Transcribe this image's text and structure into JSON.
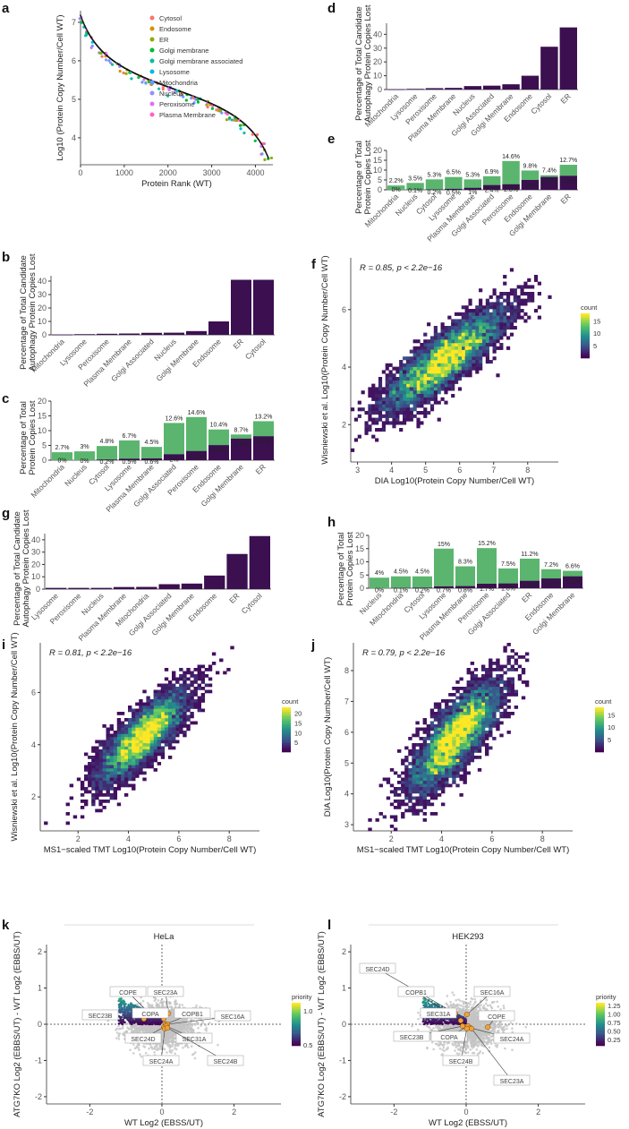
{
  "panel_labels": [
    "a",
    "b",
    "c",
    "d",
    "e",
    "f",
    "g",
    "h",
    "i",
    "j",
    "k",
    "l"
  ],
  "colors": {
    "dark": "#3b0f50",
    "green": "#5bb56e",
    "gray": "#c4c4c4",
    "orange": "#f2a23a"
  },
  "chart_data": [
    {
      "id": "a",
      "type": "scatter",
      "xlabel": "Protein Rank (WT)",
      "ylabel": "Log10 (Protein Copy Number/Cell WT)",
      "xlim": [
        0,
        4400
      ],
      "ylim": [
        3.3,
        7.3
      ],
      "xticks": [
        0,
        1000,
        2000,
        3000,
        4000
      ],
      "yticks": [
        4,
        5,
        6,
        7
      ],
      "legend": [
        {
          "name": "Cytosol",
          "color": "#F8766D"
        },
        {
          "name": "Endosome",
          "color": "#D39200"
        },
        {
          "name": "ER",
          "color": "#93AA00"
        },
        {
          "name": "Golgi membrane",
          "color": "#00BA38"
        },
        {
          "name": "Golgi membrane associated",
          "color": "#00C19F"
        },
        {
          "name": "Lysosome",
          "color": "#00B9E3"
        },
        {
          "name": "Mitochondria",
          "color": "#619CFF"
        },
        {
          "name": "Nucleus",
          "color": "#9590FF"
        },
        {
          "name": "Peroxisome",
          "color": "#DB72FB"
        },
        {
          "name": "Plasma Membrane",
          "color": "#FF61C3"
        }
      ],
      "legend_position": "top-right"
    },
    {
      "id": "b",
      "type": "bar",
      "ylabel": [
        "Percentage of Total Candidate",
        "Autophagy Protein Copies Lost"
      ],
      "ylim": [
        0,
        44
      ],
      "yticks": [
        0,
        10,
        20,
        30,
        40
      ],
      "categories": [
        "Mitochondria",
        "Lysosome",
        "Peroxisome",
        "Plasma Membrane",
        "Golgi Associated",
        "Nucleus",
        "Golgi Membrane",
        "Endosome",
        "ER",
        "Cytosol"
      ],
      "values": [
        0.2,
        0.5,
        0.8,
        1,
        1.5,
        1.6,
        2.8,
        10,
        41,
        41
      ]
    },
    {
      "id": "c",
      "type": "bar",
      "stacked": true,
      "ylabel": [
        "Percentage of Total",
        "Protein Copies Lost"
      ],
      "ylim": [
        0,
        20
      ],
      "yticks": [
        0,
        5,
        10,
        15,
        20
      ],
      "categories": [
        "Mitochondria",
        "Nucleus",
        "Cytosol",
        "Lysosome",
        "Plasma Membrane",
        "Golgi Associated",
        "Peroxisome",
        "Endosome",
        "Golgi Membrane",
        "ER"
      ],
      "series": [
        {
          "name": "autophagy",
          "values": [
            0,
            0,
            0.2,
            0.5,
            0.6,
            2,
            3.1,
            5.1,
            7.3,
            8.1
          ]
        },
        {
          "name": "total",
          "values": [
            2.7,
            3,
            4.8,
            6.7,
            4.5,
            12.6,
            14.6,
            10.4,
            8.7,
            13.2
          ]
        }
      ],
      "labels_inner": [
        "0%",
        "0%",
        "0.2%",
        "0.5%",
        "0.6%",
        "2%",
        "3.1%",
        "5.1%",
        "7.3%",
        "8.1%"
      ],
      "labels_total": [
        "2.7%",
        "3%",
        "4.8%",
        "6.7%",
        "4.5%",
        "12.6%",
        "14.6%",
        "10.4%",
        "8.7%",
        "13.2%"
      ]
    },
    {
      "id": "d",
      "type": "bar",
      "ylabel": [
        "Percentage of Total Candidate",
        "Autophagy Protein Copies Lost"
      ],
      "ylim": [
        0,
        48
      ],
      "yticks": [
        0,
        10,
        20,
        30,
        40
      ],
      "categories": [
        "Mitochondria",
        "Lysosome",
        "Peroxisome",
        "Plasma Membrane",
        "Nucleus",
        "Golgi Associated",
        "Golgi Membrane",
        "Endosome",
        "Cytosol",
        "ER"
      ],
      "values": [
        0.2,
        0.5,
        1,
        1.2,
        2.5,
        2.8,
        3.8,
        10,
        31,
        45
      ]
    },
    {
      "id": "e",
      "type": "bar",
      "stacked": true,
      "ylabel": [
        "Percentage of Total",
        "Protein Copies Lost"
      ],
      "ylim": [
        0,
        20
      ],
      "yticks": [
        0,
        5,
        10,
        15,
        20
      ],
      "categories": [
        "Mitochondria",
        "Nucleus",
        "Cytosol",
        "Lysosome",
        "Plasma Membrane",
        "Golgi Associated",
        "Peroxisome",
        "Endosome",
        "Golgi Membrane",
        "ER"
      ],
      "series": [
        {
          "name": "autophagy",
          "values": [
            0,
            0.1,
            0.2,
            0.5,
            1,
            2.4,
            2.8,
            5,
            6.5,
            7.1
          ]
        },
        {
          "name": "total",
          "values": [
            2.2,
            3.5,
            5.3,
            6.5,
            5.3,
            6.9,
            14.6,
            9.8,
            7.4,
            12.7
          ]
        }
      ],
      "labels_inner": [
        "0%",
        "0.1%",
        "0.2%",
        "0.5%",
        "1%",
        "2.4%",
        "2.8%",
        "5%",
        "6.5%",
        "7.1%"
      ],
      "labels_total": [
        "2.2%",
        "3.5%",
        "5.3%",
        "6.5%",
        "5.3%",
        "6.9%",
        "14.6%",
        "9.8%",
        "7.4%",
        "12.7%"
      ]
    },
    {
      "id": "f",
      "type": "heatmap",
      "annotation": "R = 0.85, p < 2.2e−16",
      "xlabel": "DIA Log10(Protein Copy Number/Cell WT)",
      "ylabel": "Wisniewski et al. Log10(Protein Copy Number/Cell WT)",
      "xlim": [
        2.8,
        8.9
      ],
      "ylim": [
        0.7,
        7.8
      ],
      "xticks": [
        3,
        4,
        5,
        6,
        7,
        8
      ],
      "yticks": [
        2,
        4,
        6
      ],
      "r": 0.85,
      "legend_title": "count",
      "legend_ticks": [
        15,
        10,
        5
      ],
      "legend_max": 18
    },
    {
      "id": "g",
      "type": "bar",
      "ylabel": [
        "Percentage of Total Candidate",
        "Autophagy Protein Copies Lost"
      ],
      "ylim": [
        0,
        45
      ],
      "yticks": [
        0,
        10,
        20,
        30,
        40
      ],
      "categories": [
        "Lysosome",
        "Peroxisome",
        "Nucleus",
        "Plasma Membrane",
        "Mitochondria",
        "Golgi Associated",
        "Golgi Membrane",
        "Endosome",
        "ER",
        "Cytosol"
      ],
      "values": [
        1,
        1,
        1,
        1.7,
        1.8,
        4,
        4.5,
        11,
        28.5,
        43
      ]
    },
    {
      "id": "h",
      "type": "bar",
      "stacked": true,
      "ylabel": [
        "Percentage of Total",
        "Protein Copies Lost"
      ],
      "ylim": [
        0,
        20
      ],
      "yticks": [
        0,
        5,
        10,
        15,
        20
      ],
      "categories": [
        "Nucleus",
        "Mitochondria",
        "Cytosol",
        "Lysosome",
        "Plasma Membrane",
        "Peroxisome",
        "Golgi Associated",
        "ER",
        "Endosome",
        "Golgi Membrane"
      ],
      "series": [
        {
          "name": "autophagy",
          "values": [
            0,
            0.1,
            0.2,
            0.7,
            0.8,
            1.7,
            1.8,
            2.8,
            3.7,
            4.5
          ]
        },
        {
          "name": "total",
          "values": [
            4,
            4.5,
            4.5,
            15,
            8.3,
            15.2,
            7.5,
            11.2,
            7.2,
            6.6
          ]
        }
      ],
      "labels_inner": [
        "0%",
        "0.1%",
        "0.2%",
        "0.7%",
        "0.8%",
        "1.7%",
        "1.8%",
        "2.8%",
        "3.7%",
        "4.5%"
      ],
      "labels_total": [
        "4%",
        "4.5%",
        "4.5%",
        "15%",
        "8.3%",
        "15.2%",
        "7.5%",
        "11.2%",
        "7.2%",
        "6.6%"
      ]
    },
    {
      "id": "i",
      "type": "heatmap",
      "annotation": "R = 0.81, p < 2.2e−16",
      "xlabel": "MS1−scaled TMT Log10(Protein Copy Number/Cell WT)",
      "ylabel": "Wisniewski et al. Log10(Protein Copy Number/Cell WT)",
      "xlim": [
        0.5,
        9.2
      ],
      "ylim": [
        0.7,
        7.9
      ],
      "xticks": [
        2,
        4,
        6,
        8
      ],
      "yticks": [
        2,
        4,
        6
      ],
      "r": 0.81,
      "legend_title": "count",
      "legend_ticks": [
        20,
        15,
        10,
        5
      ],
      "legend_max": 23
    },
    {
      "id": "j",
      "type": "heatmap",
      "annotation": "R = 0.79, p < 2.2e−16",
      "xlabel": "MS1−scaled TMT Log10(Protein Copy Number/Cell WT)",
      "ylabel": "DIA Log10(Protein Copy Number/Cell WT)",
      "xlim": [
        0.5,
        9.2
      ],
      "ylim": [
        2.8,
        8.9
      ],
      "xticks": [
        2,
        4,
        6,
        8
      ],
      "yticks": [
        3,
        4,
        5,
        6,
        7,
        8
      ],
      "r": 0.79,
      "legend_title": "count",
      "legend_ticks": [
        15,
        10,
        5
      ],
      "legend_max": 18
    },
    {
      "id": "k",
      "type": "scatter",
      "title": "HeLa",
      "xlabel": "WT Log2 (EBSS/UT)",
      "ylabel": "ATG7KO Log2 (EBBS/UT) - WT Log2 (EBBS/UT)",
      "xlim": [
        -3.2,
        3.3
      ],
      "ylim": [
        -2.2,
        2.2
      ],
      "xticks": [
        -2,
        0,
        2
      ],
      "yticks": [
        -2,
        -1,
        0,
        1,
        2
      ],
      "legend_title": "priority",
      "legend_ticks": [
        "1.0",
        "0.5"
      ],
      "labels": [
        "COPE",
        "SEC23A",
        "SEC23B",
        "COPA",
        "COPB1",
        "SEC16A",
        "SEC24D",
        "SEC31A",
        "SEC24A",
        "SEC24B"
      ]
    },
    {
      "id": "l",
      "type": "scatter",
      "title": "HEK293",
      "xlabel": "WT Log2 (EBSS/UT)",
      "ylabel": "ATG7KO Log2 (EBBS/UT) - WT Log2 (EBBS/UT)",
      "xlim": [
        -3.2,
        3.3
      ],
      "ylim": [
        -2.2,
        2.2
      ],
      "xticks": [
        -2,
        0,
        2
      ],
      "yticks": [
        -2,
        -1,
        0,
        1,
        2
      ],
      "legend_title": "priority",
      "legend_ticks": [
        "1.25",
        "1.00",
        "0.75",
        "0.50",
        "0.25"
      ],
      "labels": [
        "SEC24D",
        "COPB1",
        "SEC16A",
        "SEC31A",
        "COPE",
        "SEC23B",
        "COPA",
        "SEC24A",
        "SEC24B",
        "SEC23A"
      ]
    }
  ]
}
